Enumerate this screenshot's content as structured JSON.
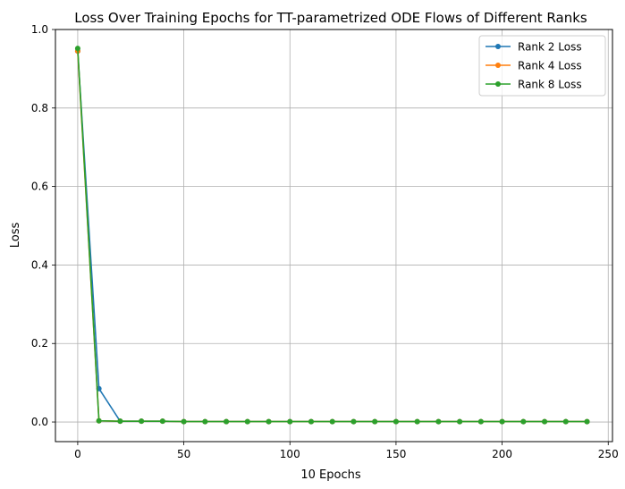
{
  "chart_data": {
    "type": "line",
    "title": "Loss Over Training Epochs for TT-parametrized ODE Flows of Different Ranks",
    "xlabel": "10 Epochs",
    "ylabel": "Loss",
    "xlim": [
      -10.5,
      252
    ],
    "ylim": [
      -0.05,
      1.0
    ],
    "xticks": [
      0,
      50,
      100,
      150,
      200,
      250
    ],
    "xtick_labels": [
      "0",
      "50",
      "100",
      "150",
      "200",
      "250"
    ],
    "yticks": [
      0.0,
      0.2,
      0.4,
      0.6,
      0.8,
      1.0
    ],
    "ytick_labels": [
      "0.0",
      "0.2",
      "0.4",
      "0.6",
      "0.8",
      "1.0"
    ],
    "grid": true,
    "legend_position": "top-right",
    "x": [
      0,
      10,
      20,
      30,
      40,
      50,
      60,
      70,
      80,
      90,
      100,
      110,
      120,
      130,
      140,
      150,
      160,
      170,
      180,
      190,
      200,
      210,
      220,
      230,
      240
    ],
    "series": [
      {
        "name": "Rank 2 Loss",
        "color": "#1f77b4",
        "values": [
          0.945,
          0.085,
          0.002,
          0.002,
          0.002,
          0.001,
          0.001,
          0.001,
          0.001,
          0.001,
          0.001,
          0.001,
          0.001,
          0.001,
          0.001,
          0.001,
          0.001,
          0.001,
          0.001,
          0.001,
          0.001,
          0.001,
          0.001,
          0.001,
          0.001
        ]
      },
      {
        "name": "Rank 4 Loss",
        "color": "#ff7f0e",
        "values": [
          0.945,
          0.003,
          0.002,
          0.002,
          0.002,
          0.001,
          0.001,
          0.001,
          0.001,
          0.001,
          0.001,
          0.001,
          0.001,
          0.001,
          0.001,
          0.001,
          0.001,
          0.001,
          0.001,
          0.001,
          0.001,
          0.001,
          0.001,
          0.001,
          0.001
        ]
      },
      {
        "name": "Rank 8 Loss",
        "color": "#2ca02c",
        "values": [
          0.952,
          0.003,
          0.002,
          0.002,
          0.002,
          0.001,
          0.001,
          0.001,
          0.001,
          0.001,
          0.001,
          0.001,
          0.001,
          0.001,
          0.001,
          0.001,
          0.001,
          0.001,
          0.001,
          0.001,
          0.001,
          0.001,
          0.001,
          0.001,
          0.001
        ]
      }
    ]
  }
}
